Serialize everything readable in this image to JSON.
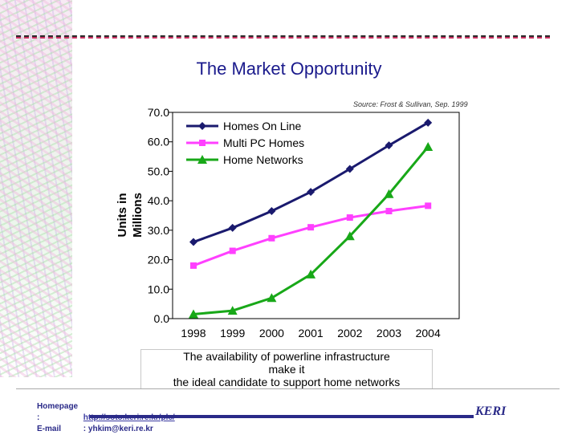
{
  "title": "The Market Opportunity",
  "source": "Source: Frost & Sullivan, Sep. 1999",
  "caption_lines": [
    "The availability of powerline infrastructure",
    "make it",
    "the ideal candidate to support home networks"
  ],
  "footer": {
    "homepage_label": "Homepage :",
    "homepage_url": "http://soto.keri.re.kr/plc/",
    "email_label": "E-mail",
    "email_sep": ":",
    "email": "yhkim@keri.re.kr",
    "logo": "KERI"
  },
  "colors": {
    "homes_online": "#1a1a6e",
    "multi_pc": "#ff40ff",
    "home_networks": "#18a818",
    "title": "#1a1a8c"
  },
  "chart_data": {
    "type": "line",
    "ylabel": "Units in Millions",
    "ylim": [
      0,
      70
    ],
    "yticks": [
      "70.0",
      "60.0",
      "50.0",
      "40.0",
      "30.0",
      "20.0",
      "10.0",
      "0.0"
    ],
    "categories": [
      "1998",
      "1999",
      "2000",
      "2001",
      "2002",
      "2003",
      "2004"
    ],
    "legend_position": "top-left inside plot",
    "series": [
      {
        "name": "Homes On Line",
        "marker": "diamond",
        "color": "#1a1a6e",
        "values": [
          26.0,
          30.8,
          36.5,
          43.0,
          50.8,
          58.8,
          66.5
        ]
      },
      {
        "name": "Multi PC Homes",
        "marker": "square",
        "color": "#ff40ff",
        "values": [
          18.0,
          23.0,
          27.3,
          31.0,
          34.3,
          36.5,
          38.3
        ]
      },
      {
        "name": "Home Networks",
        "marker": "triangle",
        "color": "#18a818",
        "values": [
          1.5,
          2.7,
          7.0,
          15.0,
          28.0,
          42.3,
          58.3
        ]
      }
    ]
  }
}
